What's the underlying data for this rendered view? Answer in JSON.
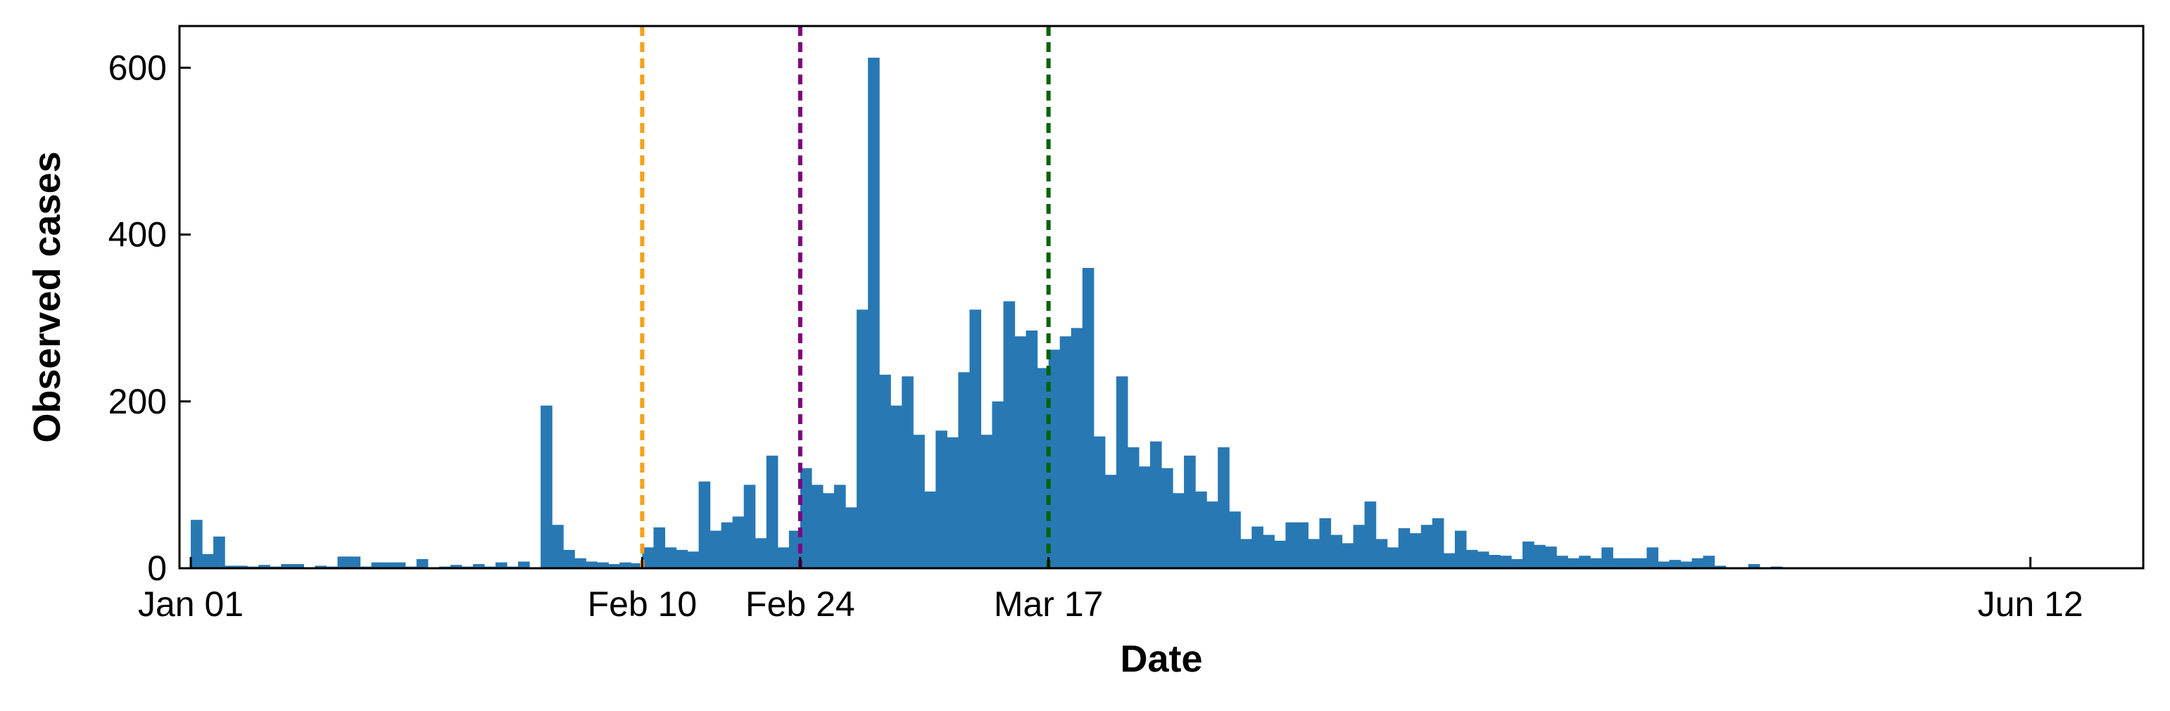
{
  "chart_data": {
    "type": "bar",
    "title": "",
    "xlabel": "Date",
    "ylabel": "Observed cases",
    "x_start": "Dec 31",
    "x_end": "Jun 22",
    "ylim": [
      0,
      650
    ],
    "grid": false,
    "bar_color": "#2878b4",
    "y_ticks": [
      0,
      200,
      400,
      600
    ],
    "x_ticks": [
      {
        "date": "Jan 01",
        "label": "Jan 01"
      },
      {
        "date": "Feb 10",
        "label": "Feb 10"
      },
      {
        "date": "Feb 24",
        "label": "Feb 24"
      },
      {
        "date": "Mar 17",
        "label": "Mar 17"
      },
      {
        "date": "Jun 12",
        "label": "Jun 12"
      }
    ],
    "reference_lines": [
      {
        "date": "Feb 10",
        "color": "#f5a11a"
      },
      {
        "date": "Feb 24",
        "color": "#800080"
      },
      {
        "date": "Mar 17",
        "color": "#006400"
      }
    ],
    "daily_start": "Jan 01",
    "values": [
      58,
      17,
      38,
      3,
      3,
      2,
      4,
      2,
      5,
      5,
      1,
      3,
      2,
      14,
      14,
      2,
      7,
      7,
      7,
      2,
      11,
      1,
      2,
      4,
      2,
      5,
      2,
      7,
      2,
      8,
      1,
      195,
      52,
      22,
      12,
      8,
      7,
      5,
      7,
      6,
      25,
      49,
      25,
      22,
      20,
      104,
      45,
      55,
      62,
      100,
      36,
      135,
      25,
      45,
      120,
      100,
      90,
      100,
      73,
      310,
      612,
      232,
      195,
      230,
      160,
      92,
      165,
      157,
      235,
      310,
      160,
      200,
      320,
      278,
      285,
      240,
      262,
      278,
      288,
      360,
      158,
      112,
      230,
      145,
      122,
      152,
      120,
      90,
      135,
      92,
      80,
      145,
      68,
      35,
      50,
      40,
      33,
      55,
      55,
      35,
      60,
      40,
      30,
      52,
      80,
      35,
      25,
      48,
      42,
      52,
      60,
      18,
      45,
      22,
      20,
      16,
      15,
      11,
      32,
      28,
      26,
      15,
      12,
      15,
      12,
      25,
      12,
      12,
      12,
      25,
      8,
      10,
      8,
      12,
      15,
      3,
      0,
      0,
      5,
      1,
      2
    ]
  }
}
